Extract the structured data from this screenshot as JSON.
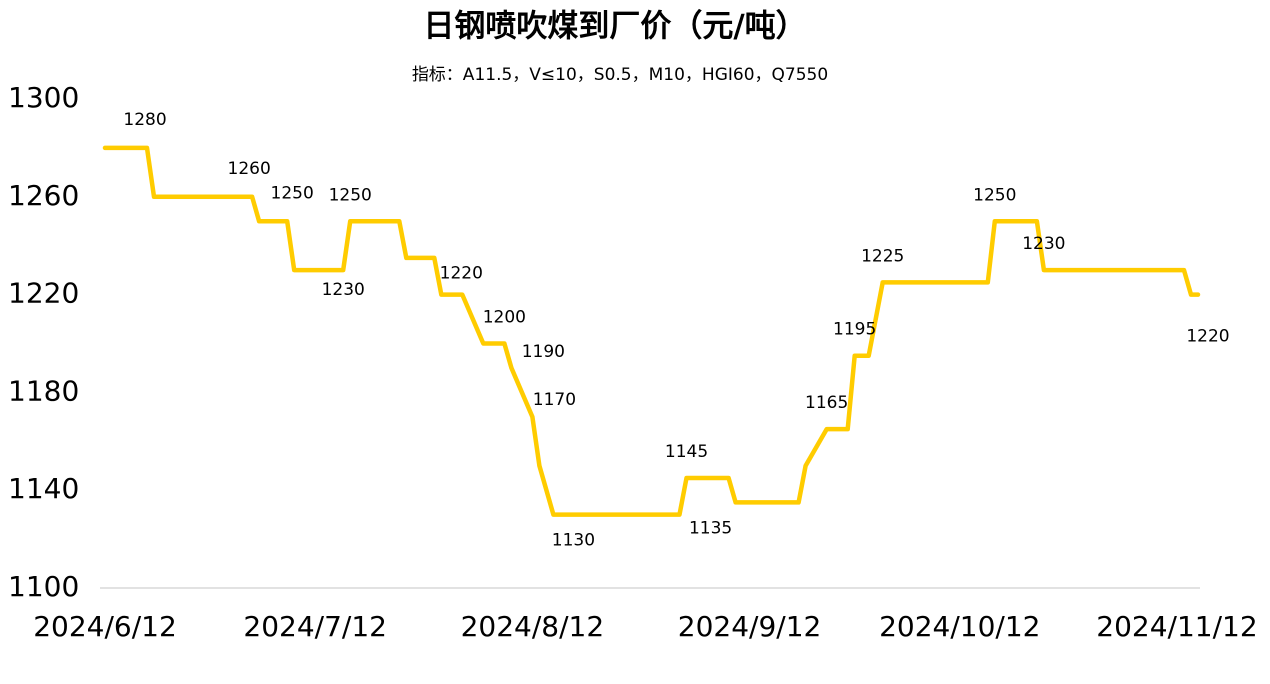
{
  "chart_data": {
    "type": "line",
    "title": "日钢喷吹煤到厂价（元/吨）",
    "subtitle": "指标：A11.5，V≤10，S0.5，M10，HGI60，Q7550",
    "x": [
      "2024/6/12",
      "2024/6/18",
      "2024/6/19",
      "2024/7/3",
      "2024/7/4",
      "2024/7/8",
      "2024/7/9",
      "2024/7/16",
      "2024/7/17",
      "2024/7/24",
      "2024/7/25",
      "2024/7/29",
      "2024/7/30",
      "2024/8/2",
      "2024/8/5",
      "2024/8/8",
      "2024/8/9",
      "2024/8/12",
      "2024/8/13",
      "2024/8/15",
      "2024/9/2",
      "2024/9/3",
      "2024/9/9",
      "2024/9/10",
      "2024/9/19",
      "2024/9/20",
      "2024/9/23",
      "2024/9/26",
      "2024/9/27",
      "2024/9/29",
      "2024/10/1",
      "2024/10/16",
      "2024/10/17",
      "2024/10/23",
      "2024/10/24",
      "2024/11/13",
      "2024/11/14",
      "2024/11/15"
    ],
    "series": [
      {
        "name": "日钢喷吹煤到厂价",
        "color": "#ffcc00",
        "values": [
          1280,
          1280,
          1260,
          1260,
          1250,
          1250,
          1230,
          1230,
          1250,
          1250,
          1235,
          1235,
          1220,
          1220,
          1200,
          1200,
          1190,
          1170,
          1150,
          1130,
          1130,
          1145,
          1145,
          1135,
          1135,
          1150,
          1165,
          1165,
          1195,
          1195,
          1225,
          1225,
          1250,
          1250,
          1230,
          1230,
          1220,
          1220
        ],
        "value_labels": [
          null,
          "1280",
          null,
          "1260",
          null,
          "1250",
          null,
          "1230",
          "1250",
          null,
          null,
          null,
          "1220",
          null,
          null,
          "1200",
          "1190",
          "1170",
          null,
          "1130",
          null,
          "1145",
          null,
          "1135",
          null,
          null,
          "1165",
          null,
          "1195",
          null,
          "1225",
          null,
          "1250",
          null,
          "1230",
          null,
          null,
          "1220"
        ]
      }
    ],
    "xlim": [
      "2024/6/12",
      "2024/11/15"
    ],
    "xticks": [
      "2024/6/12",
      "2024/7/12",
      "2024/8/12",
      "2024/9/12",
      "2024/10/12",
      "2024/11/12"
    ],
    "ylim": [
      1100,
      1300
    ],
    "yticks": [
      1100,
      1140,
      1180,
      1220,
      1260,
      1300
    ]
  }
}
